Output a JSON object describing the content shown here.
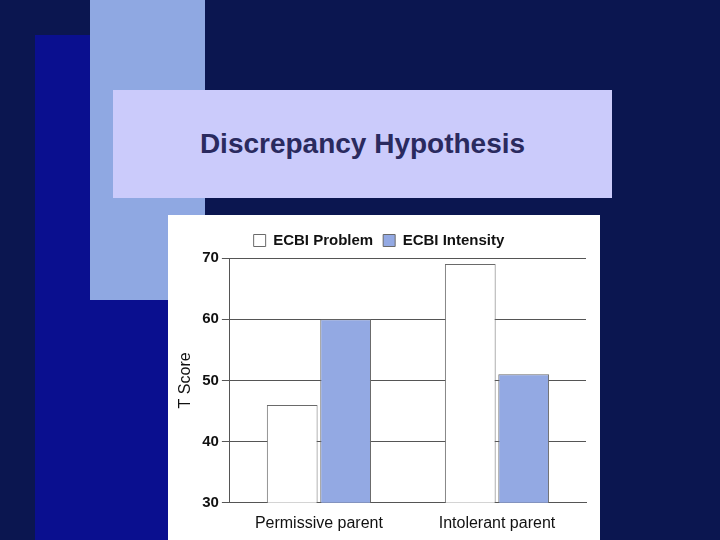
{
  "chart_data": {
    "type": "bar",
    "title": "Discrepancy Hypothesis",
    "y_label": "T Score",
    "categories": [
      "Permissive parent",
      "Intolerant parent"
    ],
    "series": [
      {
        "name": "ECBI Problem",
        "color": "#ffffff",
        "values": [
          46,
          69
        ]
      },
      {
        "name": "ECBI Intensity",
        "color": "#93a9e3",
        "values": [
          60,
          51
        ]
      }
    ],
    "ylim": [
      30,
      70
    ],
    "yticks": [
      30,
      40,
      50,
      60,
      70
    ],
    "grid": true,
    "legend": "top"
  }
}
